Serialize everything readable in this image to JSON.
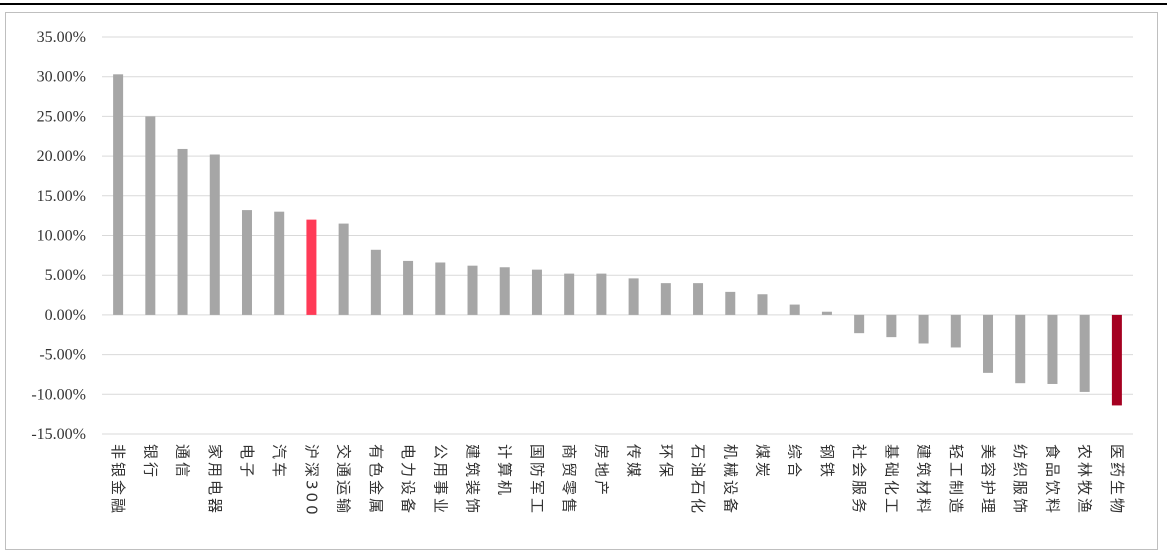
{
  "chart_data": {
    "type": "bar",
    "title": "",
    "xlabel": "",
    "ylabel": "",
    "ylim": [
      -15,
      35
    ],
    "ytick_step": 5,
    "ytick_format": "percent_2dp",
    "grid": true,
    "legend": "none",
    "categories": [
      "非银金融",
      "银行",
      "通信",
      "家用电器",
      "电子",
      "汽车",
      "沪深300",
      "交通运输",
      "有色金属",
      "电力设备",
      "公用事业",
      "建筑装饰",
      "计算机",
      "国防军工",
      "商贸零售",
      "房地产",
      "传媒",
      "环保",
      "石油石化",
      "机械设备",
      "煤炭",
      "综合",
      "钢铁",
      "社会服务",
      "基础化工",
      "建筑材料",
      "轻工制造",
      "美容护理",
      "纺织服饰",
      "食品饮料",
      "农林牧渔",
      "医药生物"
    ],
    "values": [
      30.3,
      25.0,
      20.9,
      20.2,
      13.2,
      13.0,
      12.0,
      11.5,
      8.2,
      6.8,
      6.6,
      6.2,
      6.0,
      5.7,
      5.2,
      5.2,
      4.6,
      4.0,
      4.0,
      2.9,
      2.6,
      1.3,
      0.4,
      -2.3,
      -2.8,
      -3.6,
      -4.1,
      -7.3,
      -8.6,
      -8.7,
      -9.7,
      -11.4
    ],
    "colors": {
      "default": "#a6a6a6",
      "highlight": "#ff3b57",
      "last": "#a50021",
      "grid": "#d9d9d9",
      "axis": "#bfbfbf"
    },
    "highlight_category": "沪深300"
  }
}
